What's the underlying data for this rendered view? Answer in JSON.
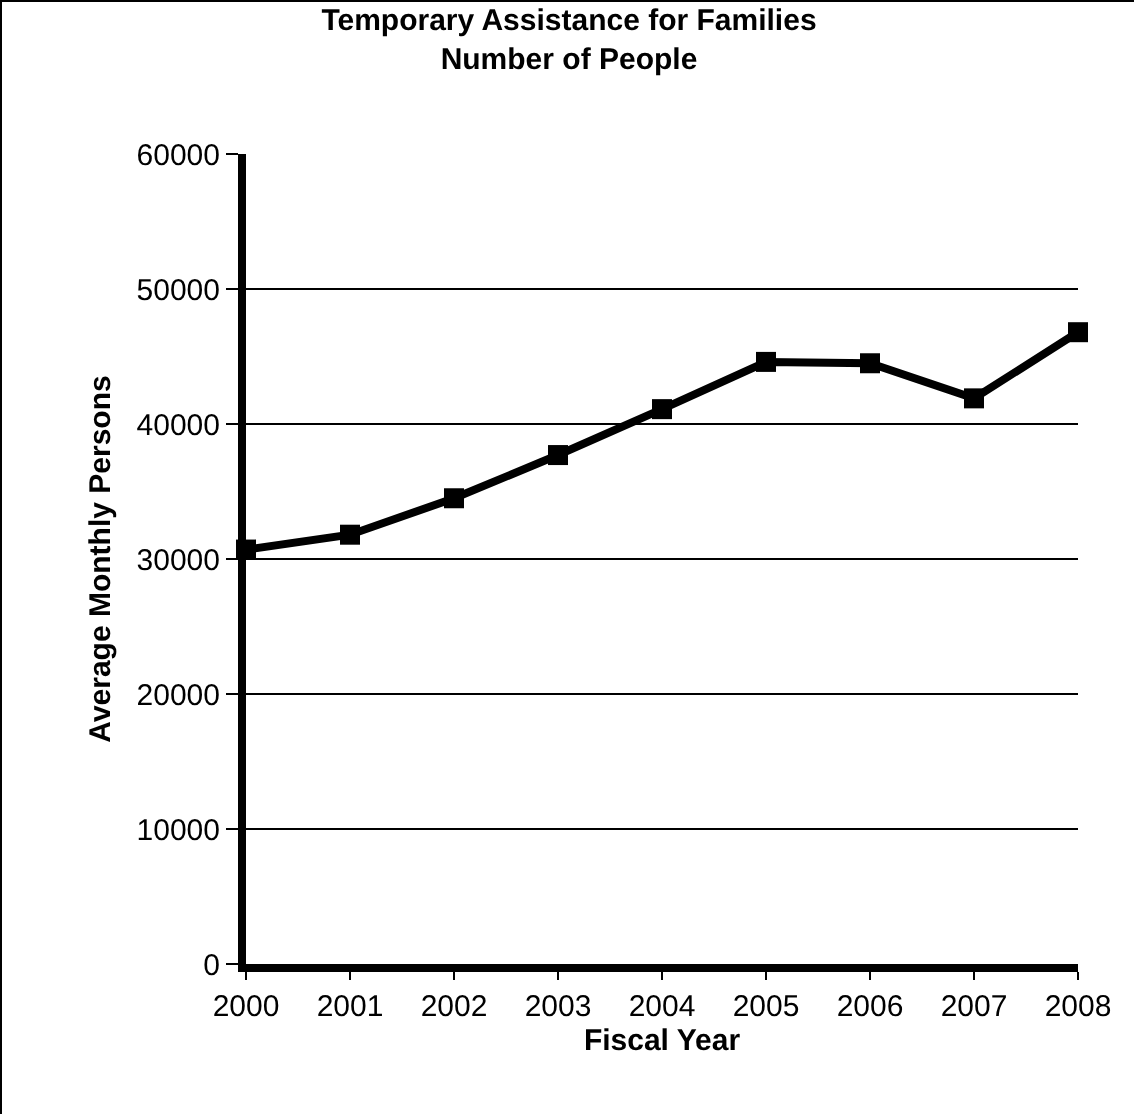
{
  "chart_data": {
    "type": "line",
    "title": "Temporary Assistance for Families",
    "subtitle": "Number of People",
    "xlabel": "Fiscal Year",
    "ylabel": "Average Monthly Persons",
    "x": [
      2000,
      2001,
      2002,
      2003,
      2004,
      2005,
      2006,
      2007,
      2008
    ],
    "series": [
      {
        "color": "#000000",
        "values": [
          30700,
          31800,
          34500,
          37700,
          41100,
          44600,
          44500,
          41900,
          46800
        ]
      }
    ],
    "xlim": [
      2000,
      2008
    ],
    "xticks": [
      2000,
      2001,
      2002,
      2003,
      2004,
      2005,
      2006,
      2007,
      2008
    ],
    "ylim": [
      0,
      60000
    ],
    "yticks": [
      0,
      10000,
      20000,
      30000,
      40000,
      50000,
      60000
    ],
    "grid": "y",
    "marker": "square",
    "line_style": "solid"
  }
}
